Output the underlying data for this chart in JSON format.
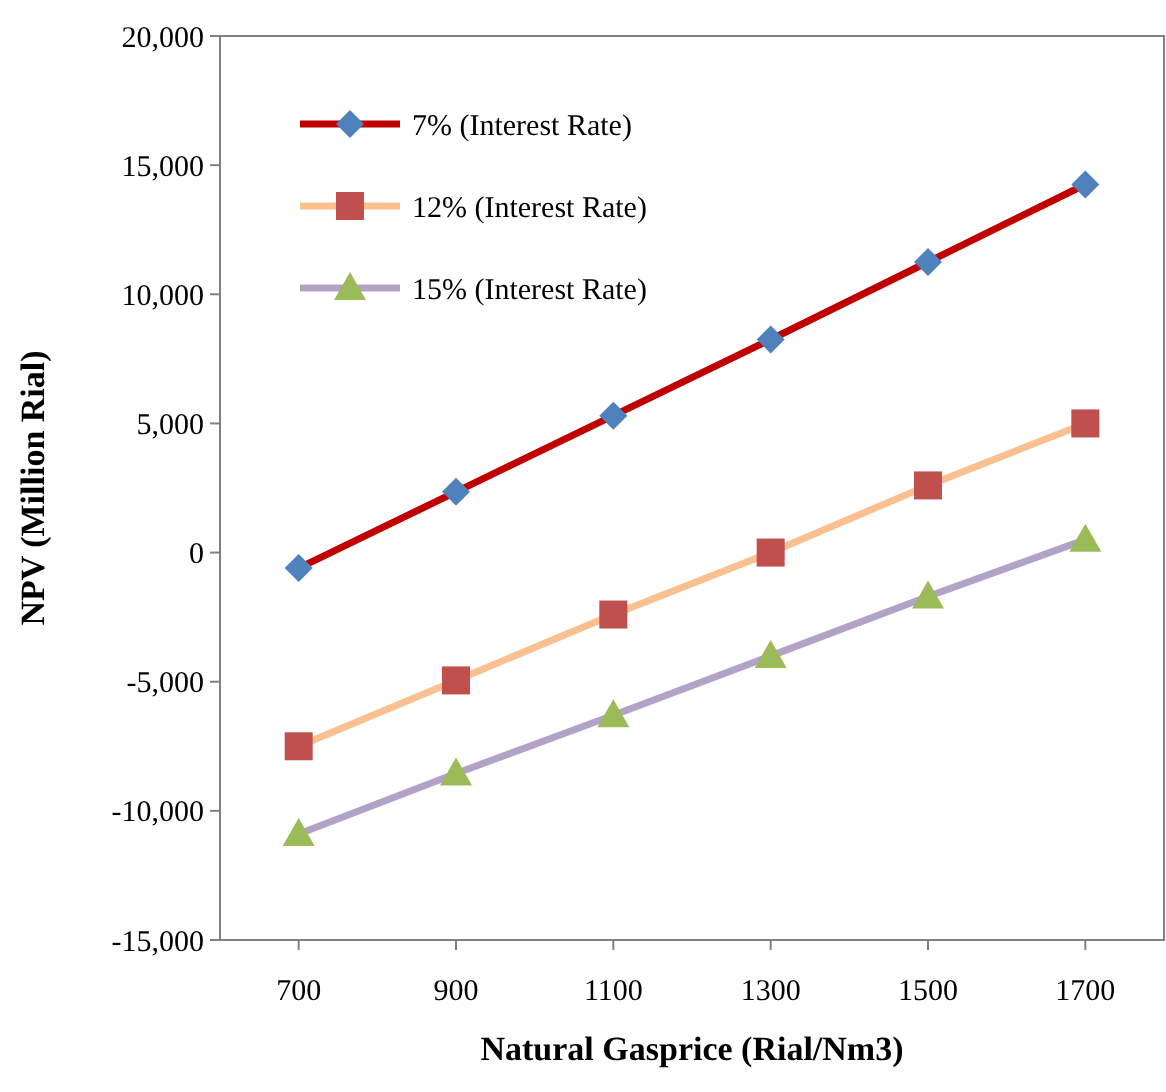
{
  "chart_data": {
    "type": "line",
    "xlabel": "Natural Gasprice (Rial/Nm3)",
    "ylabel": "NPV (Million Rial)",
    "x": [
      700,
      900,
      1100,
      1300,
      1500,
      1700
    ],
    "xlim": [
      600,
      1800
    ],
    "xticks": [
      700,
      900,
      1100,
      1300,
      1500,
      1700
    ],
    "ylim": [
      -15000,
      20000
    ],
    "yticks": [
      {
        "value": -15000,
        "label": "-15,000"
      },
      {
        "value": -10000,
        "label": "-10,000"
      },
      {
        "value": -5000,
        "label": "-5,000"
      },
      {
        "value": 0,
        "label": "0"
      },
      {
        "value": 5000,
        "label": "5,000"
      },
      {
        "value": 10000,
        "label": "10,000"
      },
      {
        "value": 15000,
        "label": "15,000"
      },
      {
        "value": 20000,
        "label": "20,000"
      }
    ],
    "grid": false,
    "legend": "top left",
    "series": [
      {
        "name": "7% (Interest Rate)",
        "color": "#c00000",
        "marker": "diamond",
        "colors": [
          "#4f81bd",
          "#4f81bd",
          "#4f81bd",
          "#4f81bd",
          "#4f81bd",
          "#4f81bd"
        ],
        "values": [
          -600,
          2350,
          5300,
          8250,
          11250,
          14250
        ]
      },
      {
        "name": "12% (Interest Rate)",
        "color": "#fac090",
        "marker": "square",
        "colors": [
          "#c0504d",
          "#c0504d",
          "#c0504d",
          "#c0504d",
          "#c0504d",
          "#c0504d"
        ],
        "values": [
          -7500,
          -4950,
          -2400,
          0,
          2600,
          5000
        ]
      },
      {
        "name": "15% (Interest Rate)",
        "color": "#b3a2c7",
        "marker": "triangle",
        "colors": [
          "#9bbb59",
          "#9bbb59",
          "#9bbb59",
          "#9bbb59",
          "#9bbb59",
          "#9bbb59"
        ],
        "values": [
          -10900,
          -8550,
          -6300,
          -4000,
          -1700,
          500
        ]
      }
    ]
  }
}
